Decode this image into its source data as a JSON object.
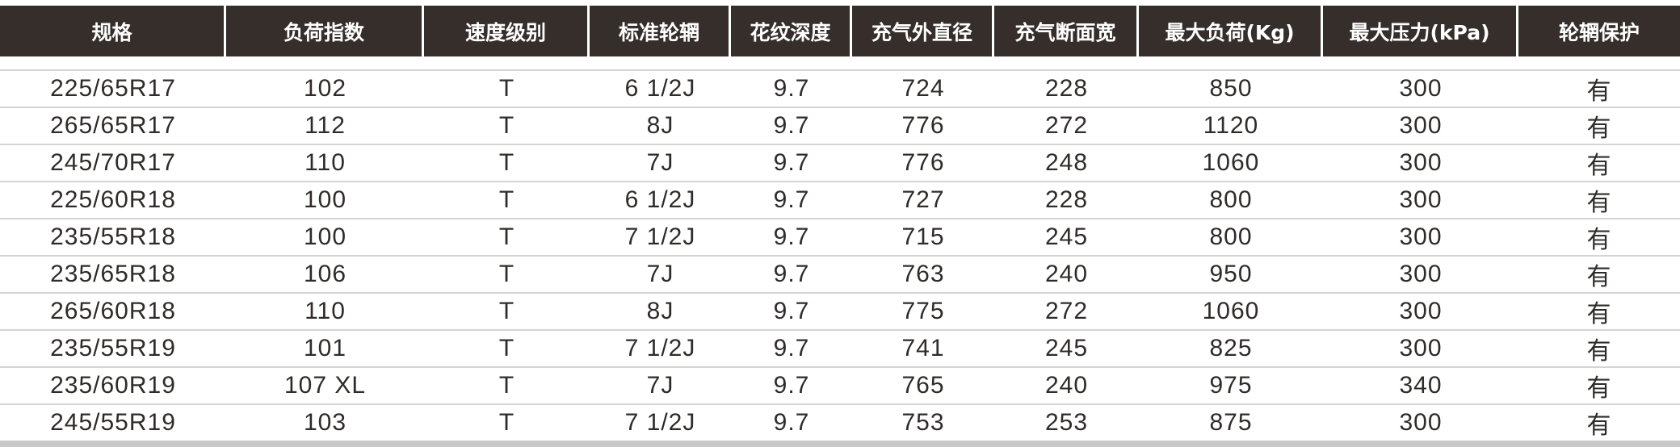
{
  "headers": [
    "规格",
    "负荷指数",
    "速度级别",
    "标准轮辋",
    "花纹深度",
    "充气外直径",
    "充气断面宽",
    "最大负荷(Kg)",
    "最大压力(kPa)",
    "轮辋保护"
  ],
  "rows": [
    [
      "225/65R17",
      "102",
      "T",
      "6 1/2J",
      "9.7",
      "724",
      "228",
      "850",
      "300",
      "有"
    ],
    [
      "265/65R17",
      "112",
      "T",
      "8J",
      "9.7",
      "776",
      "272",
      "1120",
      "300",
      "有"
    ],
    [
      "245/70R17",
      "110",
      "T",
      "7J",
      "9.7",
      "776",
      "248",
      "1060",
      "300",
      "有"
    ],
    [
      "225/60R18",
      "100",
      "T",
      "6 1/2J",
      "9.7",
      "727",
      "228",
      "800",
      "300",
      "有"
    ],
    [
      "235/55R18",
      "100",
      "T",
      "7 1/2J",
      "9.7",
      "715",
      "245",
      "800",
      "300",
      "有"
    ],
    [
      "235/65R18",
      "106",
      "T",
      "7J",
      "9.7",
      "763",
      "240",
      "950",
      "300",
      "有"
    ],
    [
      "265/60R18",
      "110",
      "T",
      "8J",
      "9.7",
      "775",
      "272",
      "1060",
      "300",
      "有"
    ],
    [
      "235/55R19",
      "101",
      "T",
      "7 1/2J",
      "9.7",
      "741",
      "245",
      "825",
      "300",
      "有"
    ],
    [
      "235/60R19",
      "107 XL",
      "T",
      "7J",
      "9.7",
      "765",
      "240",
      "975",
      "340",
      "有"
    ],
    [
      "245/55R19",
      "103",
      "T",
      "7 1/2J",
      "9.7",
      "753",
      "253",
      "875",
      "300",
      "有"
    ]
  ],
  "colors": {
    "header_bg": "#352e2b",
    "header_text": "#ffffff",
    "row_divider": "#d4d4d4"
  }
}
